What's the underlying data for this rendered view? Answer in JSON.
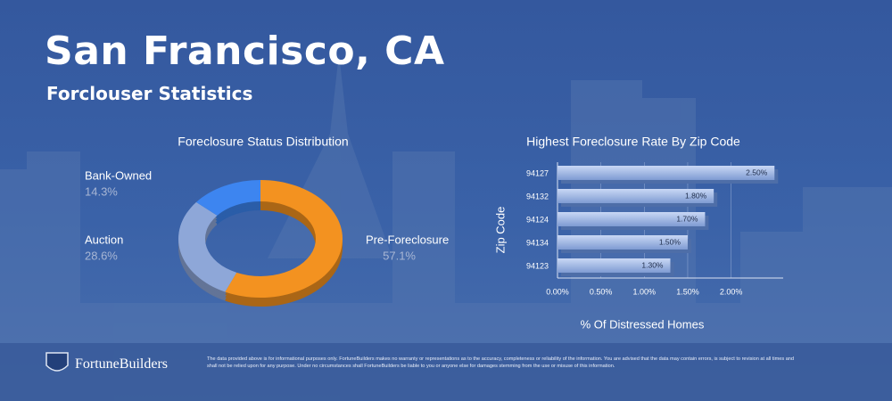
{
  "title": "San Francisco, CA",
  "subtitle": "Forclouser Statistics",
  "chart_data": [
    {
      "type": "donut",
      "title": "Foreclosure Status Distribution",
      "categories": [
        "Pre-Foreclosure",
        "Auction",
        "Bank-Owned"
      ],
      "values": [
        57.1,
        28.6,
        14.3
      ],
      "value_labels": [
        "57.1%",
        "28.6%",
        "14.3%"
      ],
      "colors": [
        "#f39220",
        "#8ea7d8",
        "#3d85f0"
      ]
    },
    {
      "type": "hbar",
      "title": "Highest Foreclosure Rate By Zip Code",
      "categories": [
        "94127",
        "94132",
        "94124",
        "94134",
        "94123"
      ],
      "values": [
        2.5,
        1.8,
        1.7,
        1.5,
        1.3
      ],
      "value_labels": [
        "2.50%",
        "1.80%",
        "1.70%",
        "1.50%",
        "1.30%"
      ],
      "color": "#a9bfea",
      "xlim": [
        0,
        2.6
      ],
      "xticks": [
        {
          "value": 0,
          "label": "0.00%"
        },
        {
          "value": 0.5,
          "label": "0.50%"
        },
        {
          "value": 1,
          "label": "1.00%"
        },
        {
          "value": 1.5,
          "label": "1.50%"
        },
        {
          "value": 2,
          "label": "2.00%"
        }
      ],
      "xlabel": "% Of Distressed Homes",
      "ylabel": "Zip Code"
    }
  ],
  "footer": {
    "brand": "FortuneBuilders",
    "disclaimer": "The data provided above is for informational purposes only. FortuneBuilders makes no warranty or representations as to the accuracy, completeness or reliability of the information. You are advised that the data may contain errors, is subject to revision at all times and shall not be relied upon for any purpose. Under no circumstances shall FortuneBuilders be liable to you or anyone else for damages stemming from the use or misuse of this information."
  }
}
